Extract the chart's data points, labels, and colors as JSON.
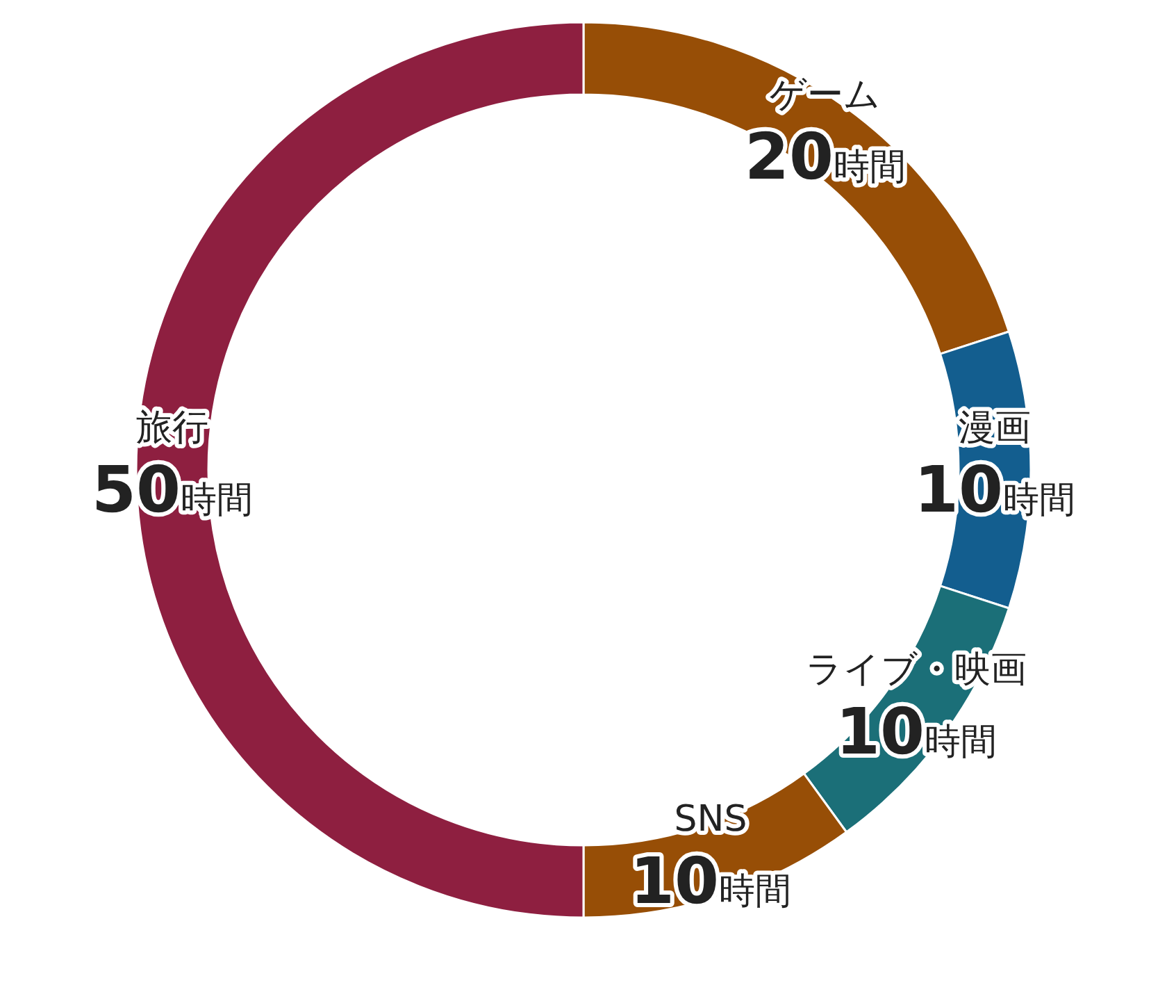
{
  "chart_data": {
    "type": "donut",
    "categories": [
      "ゲーム",
      "漫画",
      "ライブ・映画",
      "SNS",
      "旅行"
    ],
    "values": [
      20,
      10,
      10,
      10,
      50
    ],
    "colors": [
      "#974e06",
      "#135e8f",
      "#1b6f78",
      "#974e06",
      "#8e1f40"
    ],
    "value_labels": [
      "20時間",
      "10時間",
      "10時間",
      "10時間",
      "50時間"
    ]
  }
}
